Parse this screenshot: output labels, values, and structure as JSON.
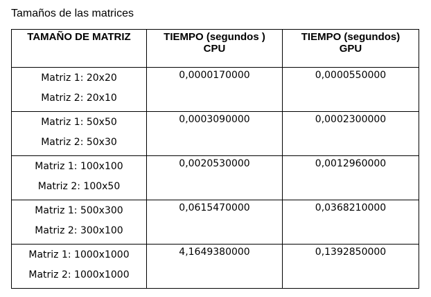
{
  "caption": "Tamaños de las matrices",
  "table": {
    "headers": [
      {
        "line1": "TAMAÑO DE MATRIZ",
        "line2": ""
      },
      {
        "line1": "TIEMPO (segundos )",
        "line2": "CPU"
      },
      {
        "line1": "TIEMPO (segundos)",
        "line2": "GPU"
      }
    ],
    "rows": [
      {
        "size_line1": "Matriz 1: 20x20",
        "size_line2": "Matriz 2: 20x10",
        "cpu": "0,0000170000",
        "gpu": "0,0000550000"
      },
      {
        "size_line1": "Matriz 1: 50x50",
        "size_line2": "Matriz 2: 50x30",
        "cpu": "0,0003090000",
        "gpu": "0,0002300000"
      },
      {
        "size_line1": "Matriz 1: 100x100",
        "size_line2": "Matriz 2: 100x50",
        "cpu": "0,0020530000",
        "gpu": "0,0012960000"
      },
      {
        "size_line1": "Matriz 1: 500x300",
        "size_line2": "Matriz 2: 300x100",
        "cpu": "0,0615470000",
        "gpu": "0,0368210000"
      },
      {
        "size_line1": "Matriz 1: 1000x1000",
        "size_line2": "Matriz 2: 1000x1000",
        "cpu": "4,1649380000",
        "gpu": "0,1392850000"
      }
    ]
  }
}
